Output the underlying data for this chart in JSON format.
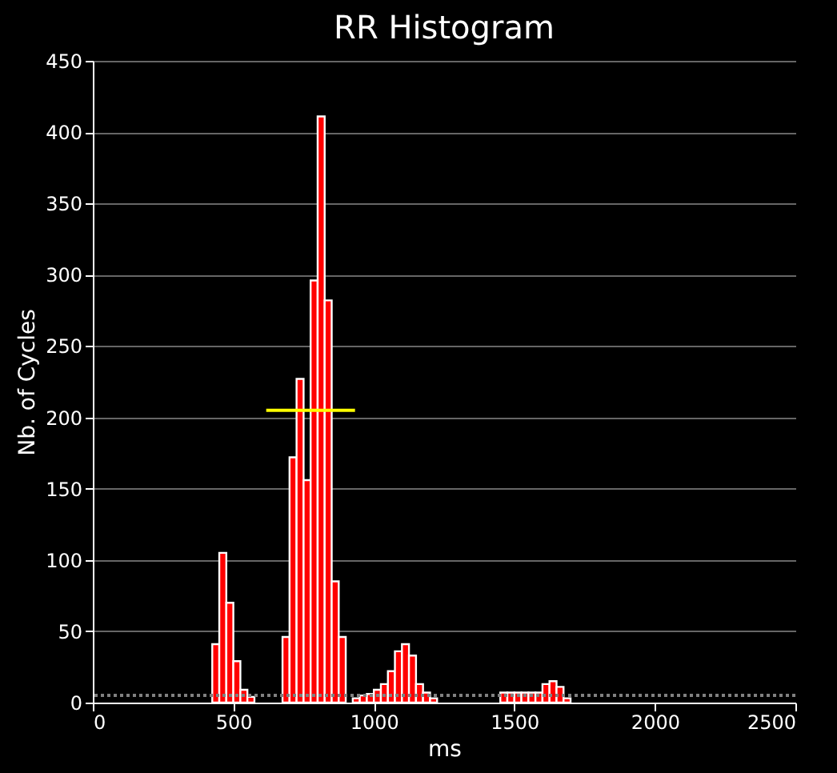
{
  "chart_data": {
    "type": "histogram",
    "title": "RR Histogram",
    "xlabel": "ms",
    "ylabel": "Nb. of Cycles",
    "bins": [
      425,
      450,
      475,
      500,
      525,
      550,
      575,
      600,
      625,
      650,
      675,
      700,
      725,
      750,
      775,
      800,
      825,
      850,
      875,
      900,
      925,
      950,
      975,
      1000,
      1025,
      1050,
      1075,
      1100,
      1125,
      1150,
      1175,
      1200,
      1225,
      1250,
      1275,
      1300,
      1325,
      1350,
      1375,
      1400,
      1425,
      1450,
      1475,
      1500,
      1525,
      1550,
      1575,
      1600,
      1625,
      1650,
      1675,
      1700
    ],
    "series": [
      {
        "color": "#ff0000",
        "values": [
          41,
          105,
          70,
          29,
          9,
          4,
          0,
          0,
          0,
          0,
          46,
          172,
          227,
          156,
          296,
          411,
          282,
          85,
          46,
          0,
          3,
          5,
          6,
          9,
          13,
          22,
          36,
          41,
          33,
          13,
          7,
          3,
          0,
          0,
          0,
          0,
          0,
          0,
          0,
          0,
          0,
          7,
          7,
          7,
          7,
          7,
          7,
          13,
          15,
          11,
          3
        ]
      },
      {
        "type": "line",
        "marker": "none",
        "color": "#ffff00",
        "x": [
          617,
          933
        ],
        "values": [
          205,
          205
        ]
      }
    ],
    "xlim": [
      0,
      2500
    ],
    "xticks": [
      0,
      500,
      1000,
      1500,
      2000,
      2500
    ],
    "ylim": [
      0,
      450
    ],
    "yticks": [
      0,
      50,
      100,
      150,
      200,
      250,
      300,
      350,
      400,
      450
    ],
    "grid": "y",
    "ref_lines": [
      {
        "axis": "y",
        "value": 5,
        "color": "#808080",
        "line_style": "dotted"
      }
    ]
  }
}
